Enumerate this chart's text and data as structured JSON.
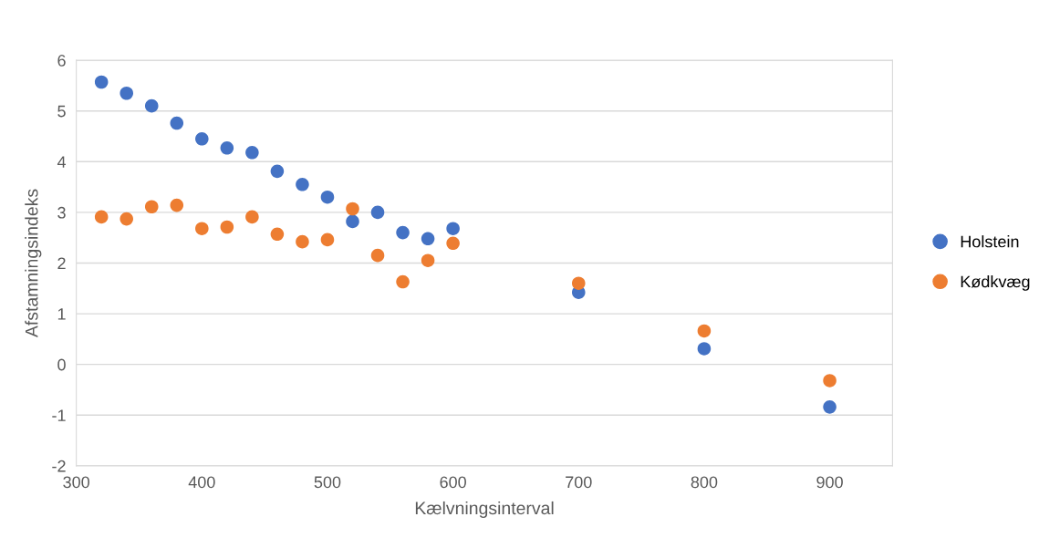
{
  "chart_data": {
    "type": "scatter",
    "xlabel": "Kælvningsinterval",
    "ylabel": "Afstamningsindeks",
    "x": [
      320,
      340,
      360,
      380,
      400,
      420,
      440,
      460,
      480,
      500,
      520,
      540,
      560,
      580,
      600,
      700,
      800,
      900
    ],
    "series": [
      {
        "name": "Holstein",
        "color": "#4472c4",
        "values": [
          5.57,
          5.35,
          5.1,
          4.76,
          4.45,
          4.27,
          4.18,
          3.81,
          3.55,
          3.3,
          2.82,
          3.0,
          2.6,
          2.48,
          2.68,
          1.42,
          0.31,
          -0.84
        ]
      },
      {
        "name": "Kødkvæg",
        "color": "#ed7d31",
        "values": [
          2.91,
          2.87,
          3.11,
          3.14,
          2.68,
          2.71,
          2.91,
          2.57,
          2.42,
          2.46,
          3.07,
          2.15,
          1.63,
          2.05,
          2.39,
          1.6,
          0.66,
          -0.32
        ]
      }
    ],
    "xlim": [
      300,
      950
    ],
    "xticks": [
      300,
      400,
      500,
      600,
      700,
      800,
      900
    ],
    "ylim": [
      -2,
      6
    ],
    "yticks": [
      {
        "value": -2,
        "label": "-2"
      },
      {
        "value": -1,
        "label": "-1"
      },
      0,
      1,
      2,
      3,
      4,
      5,
      6
    ],
    "grid": "y",
    "legend": "right",
    "marker": "circle"
  }
}
